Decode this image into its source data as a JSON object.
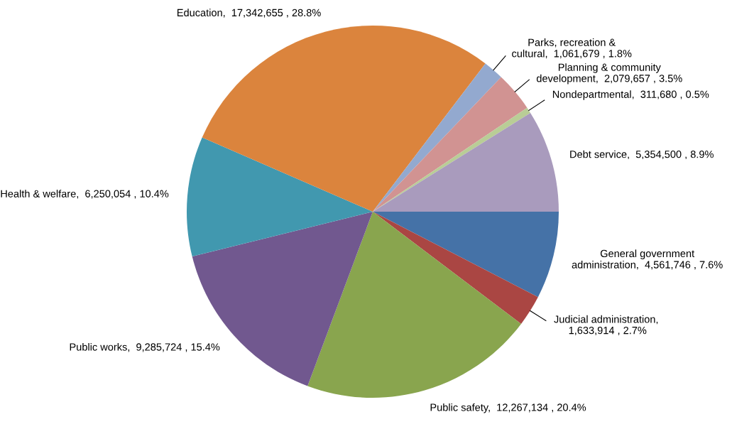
{
  "chart_data": {
    "type": "pie",
    "categories": [
      "General government administration",
      "Judicial administration",
      "Public safety",
      "Public works",
      "Health & welfare",
      "Education",
      "Parks, recreation & cultural",
      "Planning & community development",
      "Nondepartmental",
      "Debt service"
    ],
    "values": [
      4561746,
      1633914,
      12267134,
      9285724,
      6250054,
      17342655,
      1061679,
      2079657,
      311680,
      5354500
    ],
    "value_labels": [
      ",  4,561,746 , 7.6%",
      ",  1,633,914 , 2.7%",
      ",  12,267,134 , 20.4%",
      ",  9,285,724 , 15.4%",
      ",  6,250,054 , 10.4%",
      ",  17,342,655 , 28.8%",
      ",  1,061,679 , 1.8%",
      ",  2,079,657 , 3.5%",
      ",  311,680 , 0.5%",
      ",  5,354,500 , 8.9%"
    ],
    "colors": [
      "#4572a7",
      "#aa4643",
      "#89a54e",
      "#71588f",
      "#4198af",
      "#db843d",
      "#93a9cf",
      "#d19392",
      "#b9cd96",
      "#a99bbd"
    ]
  }
}
